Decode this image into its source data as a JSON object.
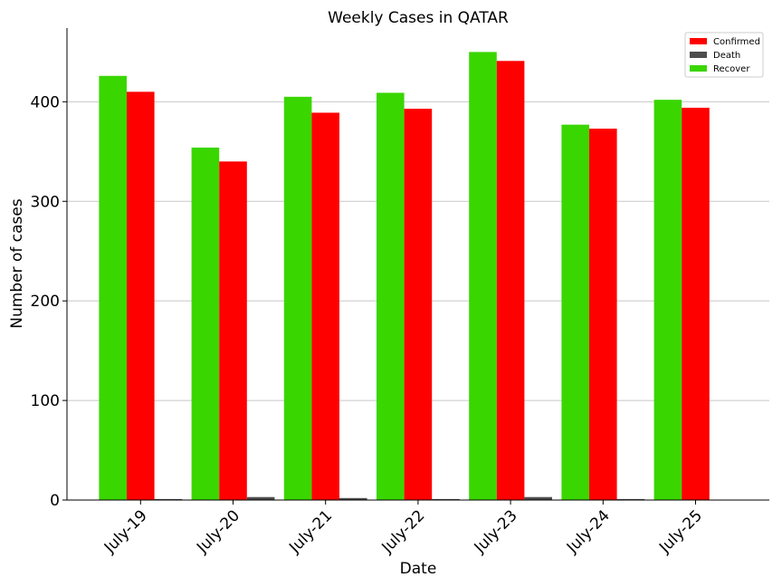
{
  "chart_data": {
    "type": "bar",
    "title": "Weekly Cases in QATAR",
    "xlabel": "Date",
    "ylabel": "Number of cases",
    "categories": [
      "July-19",
      "July-20",
      "July-21",
      "July-22",
      "July-23",
      "July-24",
      "July-25"
    ],
    "series": [
      {
        "name": "Recover",
        "color": "#3ad600",
        "values": [
          426,
          354,
          405,
          409,
          450,
          377,
          402
        ]
      },
      {
        "name": "Confirmed",
        "color": "#ff0000",
        "values": [
          410,
          340,
          389,
          393,
          441,
          373,
          394
        ]
      },
      {
        "name": "Death",
        "color": "#4d4d4d",
        "values": [
          1,
          3,
          2,
          1,
          3,
          1,
          0
        ]
      }
    ],
    "legend_order": [
      "Confirmed",
      "Death",
      "Recover"
    ],
    "legend_position": "top-right",
    "ylim": [
      0,
      474
    ],
    "yticks": [
      0,
      100,
      200,
      300,
      400
    ],
    "grid": "horizontal"
  }
}
